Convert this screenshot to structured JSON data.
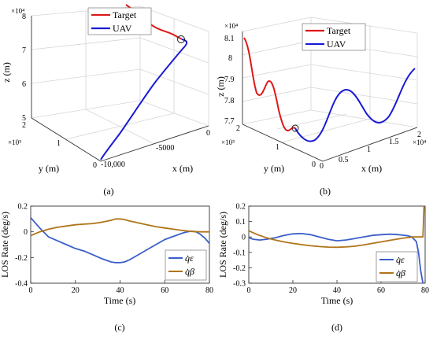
{
  "chart_data": [
    {
      "panel": "(a)",
      "type": "line3d",
      "legend": [
        "Target",
        "UAV"
      ],
      "colors": {
        "Target": "#e01818",
        "UAV": "#1a1ad6"
      },
      "xlabel": "x (m)",
      "ylabel": "y (m)",
      "zlabel": "z (m)",
      "x_ticks": [
        "-10,000",
        "-5000",
        "0"
      ],
      "y_ticks": [
        "0",
        "1",
        "2"
      ],
      "y_multiplier": "×10⁵",
      "z_ticks": [
        "5",
        "6",
        "7",
        "8"
      ],
      "z_multiplier": "×10⁴",
      "x_range": [
        -12500,
        0
      ],
      "y_range": [
        0,
        200000
      ],
      "z_range": [
        50000,
        80000
      ],
      "grid": true,
      "series": [
        {
          "name": "Target",
          "x": [
            -4500,
            -3200,
            -1500,
            0
          ],
          "y": [
            190000,
            188000,
            186000,
            184000
          ],
          "z": [
            80400,
            79800,
            79100,
            78600
          ]
        },
        {
          "name": "UAV",
          "x": [
            -12200,
            -11200,
            -9200,
            -6800,
            -4200,
            -2000,
            -400,
            500,
            0
          ],
          "y": [
            5000,
            25000,
            55000,
            90000,
            122000,
            150000,
            170000,
            180000,
            184000
          ],
          "z": [
            50000,
            51500,
            54200,
            58500,
            63500,
            68800,
            73800,
            77200,
            78600
          ]
        }
      ],
      "interception_marker": {
        "x": 0,
        "y": 184000,
        "z": 78600
      }
    },
    {
      "panel": "(b)",
      "type": "line3d",
      "legend": [
        "Target",
        "UAV"
      ],
      "colors": {
        "Target": "#e01818",
        "UAV": "#1a1ad6"
      },
      "xlabel": "x (m)",
      "ylabel": "y (m)",
      "zlabel": "z (m)",
      "x_ticks": [
        "0",
        "0.5",
        "1",
        "1.5",
        "2"
      ],
      "x_multiplier": "×10⁴",
      "y_ticks": [
        "0",
        "1",
        "2"
      ],
      "y_multiplier": "×10⁵",
      "z_ticks": [
        "7.7",
        "7.8",
        "7.9",
        "8",
        "8.1"
      ],
      "z_multiplier": "×10⁴",
      "x_range": [
        0,
        20000
      ],
      "y_range": [
        0,
        200000
      ],
      "z_range": [
        77000,
        81000
      ],
      "grid": true,
      "series": [
        {
          "name": "Target",
          "x": [
            0,
            0,
            0,
            0,
            0,
            0,
            0,
            0
          ],
          "y": [
            200000,
            195000,
            190000,
            180000,
            170000,
            160000,
            150000,
            145000
          ],
          "z": [
            81000,
            79500,
            78200,
            78600,
            77800,
            77400,
            77300,
            77200
          ]
        },
        {
          "name": "UAV",
          "x": [
            0,
            2000,
            4000,
            6500,
            9000,
            11500,
            14000,
            17000,
            20000
          ],
          "y": [
            145000,
            140000,
            135000,
            128000,
            120000,
            112000,
            105000,
            95000,
            85000
          ],
          "z": [
            77200,
            77000,
            77300,
            77900,
            78200,
            77800,
            77400,
            78000,
            79200
          ]
        }
      ],
      "interception_marker": {
        "x": 0,
        "y": 145000,
        "z": 77200
      }
    },
    {
      "panel": "(c)",
      "type": "line",
      "xlabel": "Time (s)",
      "ylabel": "LOS Rate (deg/s)",
      "xlim": [
        0,
        80
      ],
      "ylim": [
        -0.4,
        0.2
      ],
      "x_ticks": [
        0,
        20,
        40,
        60,
        80
      ],
      "y_ticks": [
        "-0.4",
        "-0.2",
        "0",
        "0.2"
      ],
      "legend_position": "bottom-right",
      "series": [
        {
          "name": "q̇ε",
          "color": "#3b5fc8",
          "x": [
            0,
            4,
            8,
            12,
            16,
            20,
            24,
            28,
            32,
            36,
            38,
            40,
            42,
            44,
            48,
            52,
            56,
            60,
            64,
            68,
            70,
            72,
            74,
            76,
            78,
            80
          ],
          "y": [
            0.11,
            0.03,
            -0.04,
            -0.07,
            -0.1,
            -0.13,
            -0.15,
            -0.18,
            -0.21,
            -0.235,
            -0.24,
            -0.24,
            -0.235,
            -0.22,
            -0.18,
            -0.14,
            -0.1,
            -0.06,
            -0.035,
            -0.01,
            0.0,
            0.005,
            0.0,
            -0.02,
            -0.05,
            -0.09
          ]
        },
        {
          "name": "q̇β",
          "color": "#b07518",
          "x": [
            0,
            4,
            8,
            12,
            16,
            20,
            24,
            28,
            32,
            36,
            38,
            40,
            42,
            44,
            48,
            52,
            56,
            60,
            64,
            68,
            72,
            76,
            80
          ],
          "y": [
            -0.03,
            0.0,
            0.02,
            0.035,
            0.045,
            0.055,
            0.06,
            0.065,
            0.075,
            0.09,
            0.1,
            0.1,
            0.095,
            0.085,
            0.07,
            0.055,
            0.04,
            0.03,
            0.02,
            0.01,
            0.003,
            0.0,
            0.0
          ]
        }
      ]
    },
    {
      "panel": "(d)",
      "type": "line",
      "xlabel": "Time (s)",
      "ylabel": "LOS Rate (deg/s)",
      "xlim": [
        0,
        80
      ],
      "ylim": [
        -0.3,
        0.2
      ],
      "x_ticks": [
        0,
        20,
        40,
        60,
        80
      ],
      "y_ticks": [
        "-0.3",
        "-0.2",
        "-0.1",
        "0",
        "0.1",
        "0.2"
      ],
      "legend_position": "bottom-right",
      "series": [
        {
          "name": "q̇ε",
          "color": "#3b5fc8",
          "x": [
            0,
            2,
            5,
            8,
            12,
            16,
            20,
            24,
            28,
            32,
            36,
            40,
            44,
            48,
            52,
            56,
            60,
            64,
            68,
            72,
            74,
            76,
            77,
            78,
            79
          ],
          "y": [
            -0.005,
            -0.015,
            -0.02,
            -0.015,
            -0.005,
            0.01,
            0.02,
            0.022,
            0.015,
            0.0,
            -0.015,
            -0.025,
            -0.02,
            -0.01,
            0.0,
            0.01,
            0.015,
            0.018,
            0.015,
            0.008,
            0.0,
            -0.03,
            -0.1,
            -0.22,
            -0.3
          ]
        },
        {
          "name": "q̇β",
          "color": "#b07518",
          "x": [
            0,
            4,
            8,
            12,
            16,
            20,
            24,
            28,
            32,
            36,
            40,
            44,
            48,
            52,
            56,
            60,
            64,
            68,
            72,
            75,
            78,
            79,
            79.5
          ],
          "y": [
            0.04,
            0.015,
            -0.005,
            -0.02,
            -0.032,
            -0.042,
            -0.05,
            -0.057,
            -0.062,
            -0.066,
            -0.067,
            -0.065,
            -0.06,
            -0.052,
            -0.042,
            -0.032,
            -0.022,
            -0.012,
            -0.004,
            0.0,
            0.0,
            0.0,
            0.2
          ]
        }
      ]
    }
  ],
  "labels": {
    "a": "(a)",
    "b": "(b)",
    "c": "(c)",
    "d": "(d)",
    "target": "Target",
    "uav": "UAV",
    "xm": "x (m)",
    "ym": "y (m)",
    "zm": "z (m)",
    "time": "Time (s)",
    "los": "LOS Rate (deg/s)",
    "e10_4": "×10⁴",
    "e10_5": "×10⁵"
  }
}
